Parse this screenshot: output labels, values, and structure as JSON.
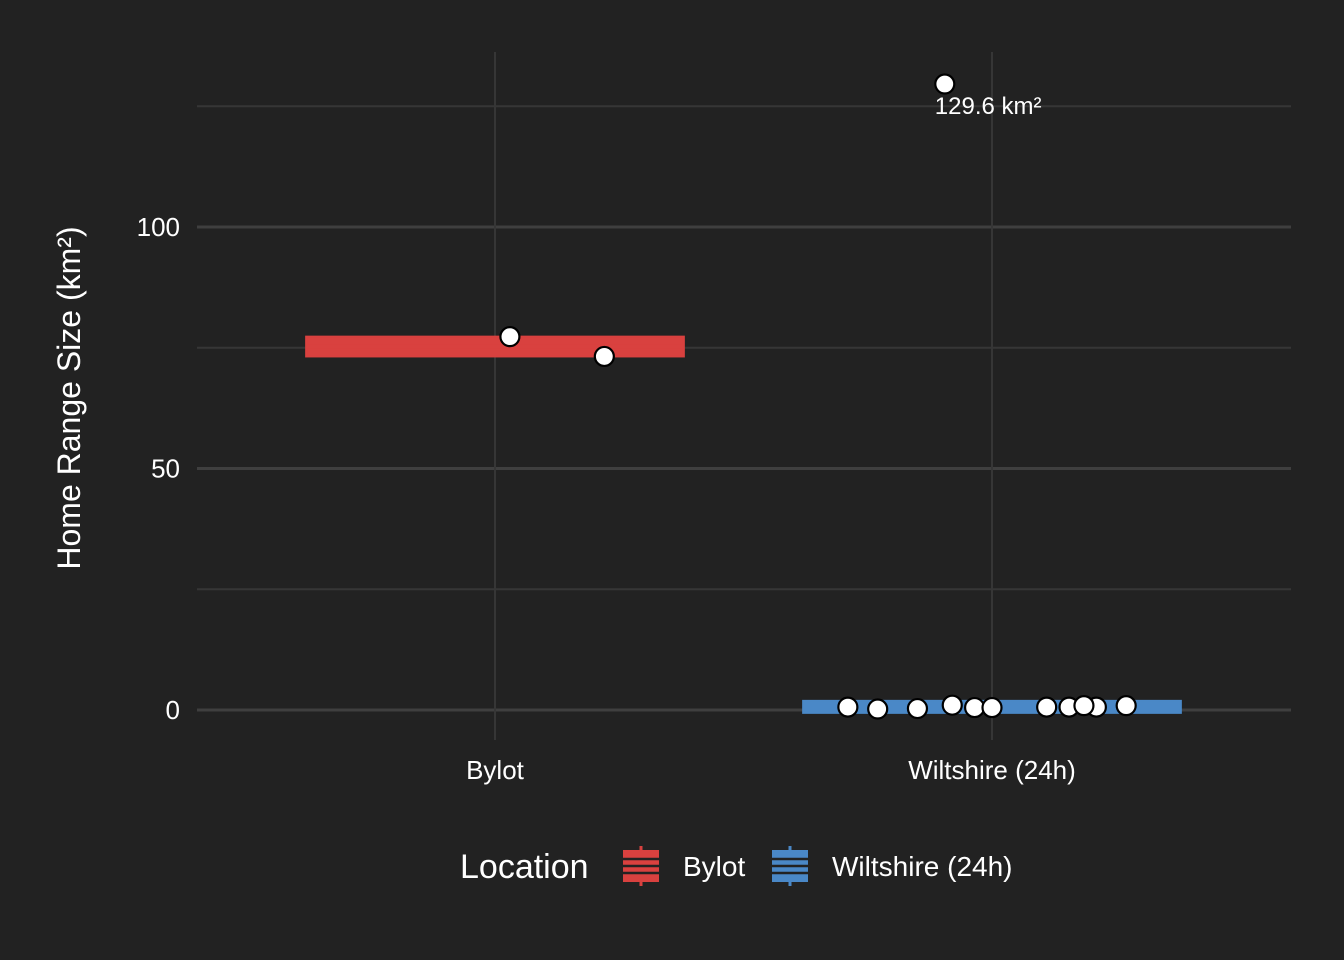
{
  "chart_data": {
    "type": "boxplot",
    "xlabel": "",
    "ylabel": "Home Range Size (km²)",
    "categories": [
      "Bylot",
      "Wiltshire (24h)"
    ],
    "ylim": [
      -5.5,
      132
    ],
    "yticks": [
      0,
      50,
      100
    ],
    "grid": true,
    "legend": {
      "title": "Location",
      "placement": "bottom",
      "entries": [
        {
          "label": "Bylot",
          "color": "#d9413f"
        },
        {
          "label": "Wiltshire (24h)",
          "color": "#4a88c7"
        }
      ]
    },
    "boxes": [
      {
        "category": "Bylot",
        "min": 73.2,
        "q1": 73.2,
        "median": 75.3,
        "q3": 77.3,
        "max": 77.3,
        "color": "#d9413f"
      },
      {
        "category": "Wiltshire (24h)",
        "min": 0.2,
        "q1": 0.4,
        "median": 0.6,
        "q3": 0.9,
        "max": 1.2,
        "color": "#4a88c7"
      }
    ],
    "points": [
      {
        "category": "Bylot",
        "jitter": 0.03,
        "y": 77.3
      },
      {
        "category": "Bylot",
        "jitter": 0.22,
        "y": 73.2
      },
      {
        "category": "Wiltshire (24h)",
        "jitter": -0.29,
        "y": 0.6
      },
      {
        "category": "Wiltshire (24h)",
        "jitter": -0.23,
        "y": 0.2
      },
      {
        "category": "Wiltshire (24h)",
        "jitter": -0.15,
        "y": 0.3
      },
      {
        "category": "Wiltshire (24h)",
        "jitter": -0.08,
        "y": 1.0
      },
      {
        "category": "Wiltshire (24h)",
        "jitter": -0.035,
        "y": 0.5
      },
      {
        "category": "Wiltshire (24h)",
        "jitter": 0.0,
        "y": 0.5
      },
      {
        "category": "Wiltshire (24h)",
        "jitter": 0.11,
        "y": 0.6
      },
      {
        "category": "Wiltshire (24h)",
        "jitter": 0.155,
        "y": 0.6
      },
      {
        "category": "Wiltshire (24h)",
        "jitter": 0.21,
        "y": 0.6
      },
      {
        "category": "Wiltshire (24h)",
        "jitter": 0.185,
        "y": 0.9
      },
      {
        "category": "Wiltshire (24h)",
        "jitter": 0.27,
        "y": 0.9
      },
      {
        "category": "Wiltshire (24h)",
        "jitter": -0.095,
        "y": 129.6
      }
    ],
    "annotations": [
      {
        "text": "129.6 km²",
        "category": "Wiltshire (24h)",
        "jitter": -0.095,
        "y": 129.6
      }
    ]
  }
}
